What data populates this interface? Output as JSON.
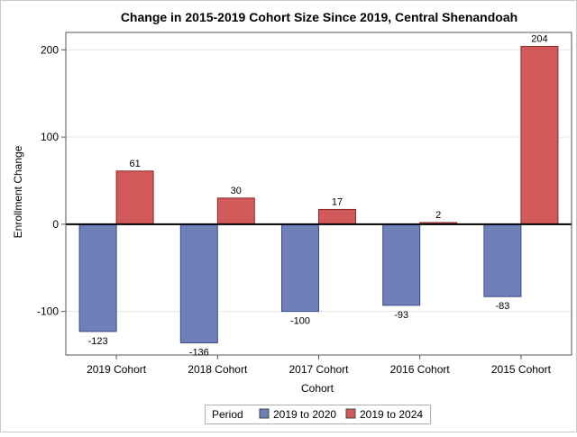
{
  "chart_data": {
    "type": "bar",
    "title": "Change in 2015-2019 Cohort Size Since 2019, Central Shenandoah",
    "xlabel": "Cohort",
    "ylabel": "Enrollment Change",
    "categories": [
      "2019 Cohort",
      "2018 Cohort",
      "2017 Cohort",
      "2016 Cohort",
      "2015 Cohort"
    ],
    "series": [
      {
        "name": "2019 to 2020",
        "values": [
          -123,
          -136,
          -100,
          -93,
          -83
        ],
        "color": "#6f7fb8"
      },
      {
        "name": "2019 to 2024",
        "values": [
          61,
          30,
          17,
          2,
          204
        ],
        "color": "#d25a5a"
      }
    ],
    "ylim": [
      -150,
      220
    ],
    "yticks": [
      -100,
      0,
      100,
      200
    ],
    "grid": true,
    "legend": {
      "title": "Period",
      "placement": "bottom"
    },
    "reference_line": 0
  }
}
